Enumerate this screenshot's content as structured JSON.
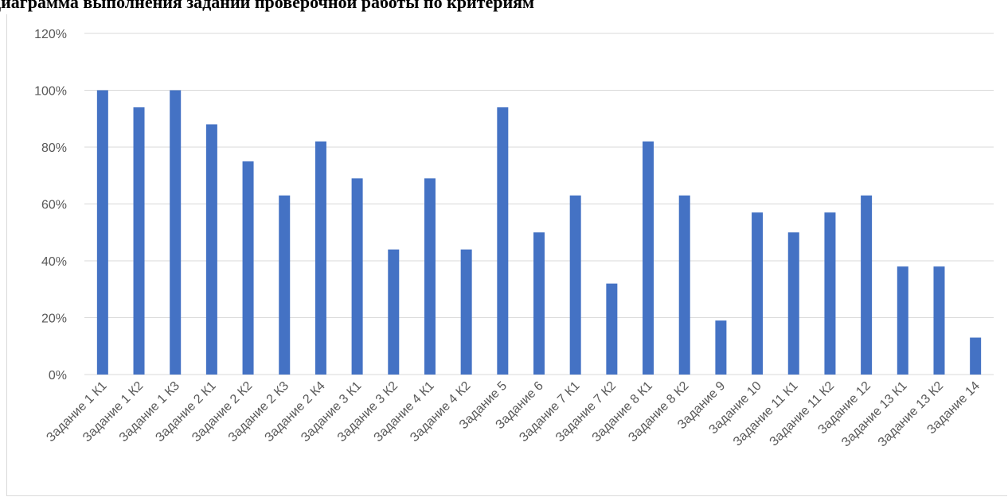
{
  "chart_data": {
    "type": "bar",
    "title": "Диаграмма выполнения заданий проверочной работы по критериям",
    "xlabel": "",
    "ylabel": "",
    "ylim": [
      0,
      120
    ],
    "y_ticks": [
      "0%",
      "20%",
      "40%",
      "60%",
      "80%",
      "100%",
      "120%"
    ],
    "grid": true,
    "legend": "none",
    "categories": [
      "Задание 1 К1",
      "Задание 1 К2",
      "Задание 1 К3",
      "Задание 2 К1",
      "Задание 2 К2",
      "Задание 2 К3",
      "Задание 2 К4",
      "Задание 3 К1",
      "Задание 3 К2",
      "Задание 4 К1",
      "Задание 4 К2",
      "Задание 5",
      "Задание 6",
      "Задание 7 К1",
      "Задание 7 К2",
      "Задание 8 К1",
      "Задание 8 К2",
      "Задание 9",
      "Задание 10",
      "Задание 11 К1",
      "Задание 11 К2",
      "Задание 12",
      "Задание 13 К1",
      "Задание 13 К2",
      "Задание 14"
    ],
    "values": [
      100,
      94,
      100,
      88,
      75,
      63,
      82,
      69,
      44,
      69,
      44,
      94,
      50,
      63,
      32,
      82,
      63,
      19,
      57,
      50,
      57,
      63,
      38,
      38,
      13
    ],
    "colors": {
      "bar": "#4472c4",
      "grid": "#d9d9d9",
      "tick_text": "#595959"
    }
  }
}
